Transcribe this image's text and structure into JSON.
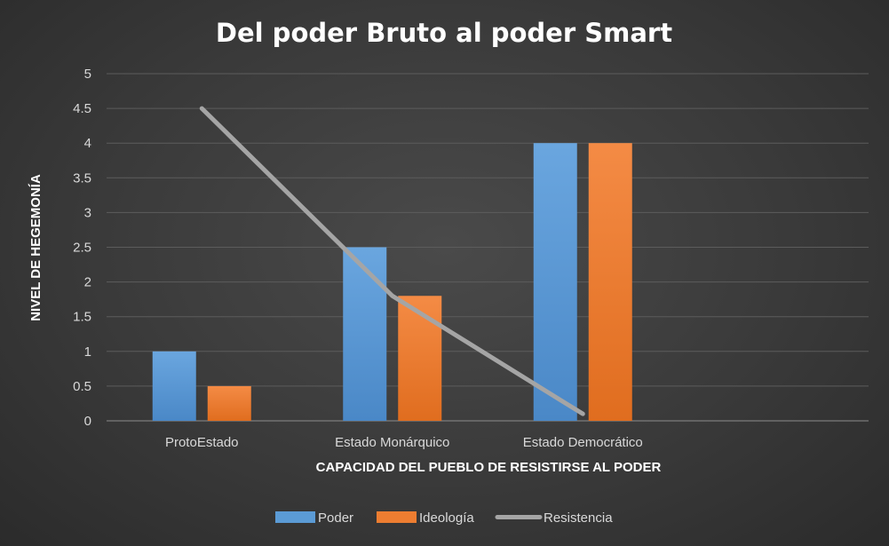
{
  "chart_data": {
    "type": "bar",
    "title": "Del poder Bruto al poder Smart",
    "xlabel": "CAPACIDAD DEL PUEBLO DE RESISTIRSE AL PODER",
    "ylabel": "NIVEL DE  HEGEMONÍA",
    "categories": [
      "ProtoEstado",
      "Estado Monárquico",
      "Estado Democrático",
      ""
    ],
    "ylim": [
      0,
      5
    ],
    "yticks": [
      "0",
      "0.5",
      "1",
      "1.5",
      "2",
      "2.5",
      "3",
      "3.5",
      "4",
      "4.5",
      "5"
    ],
    "grid": true,
    "legend_position": "bottom",
    "series": [
      {
        "name": "Poder",
        "kind": "bar",
        "color": "#5b9bd5",
        "values": [
          1,
          2.5,
          4,
          null
        ]
      },
      {
        "name": "Ideología",
        "kind": "bar",
        "color": "#ed7d31",
        "values": [
          0.5,
          1.8,
          4,
          null
        ]
      },
      {
        "name": "Resistencia",
        "kind": "line",
        "color": "#a5a5a5",
        "values": [
          4.5,
          1.8,
          0.1,
          null
        ]
      }
    ]
  }
}
